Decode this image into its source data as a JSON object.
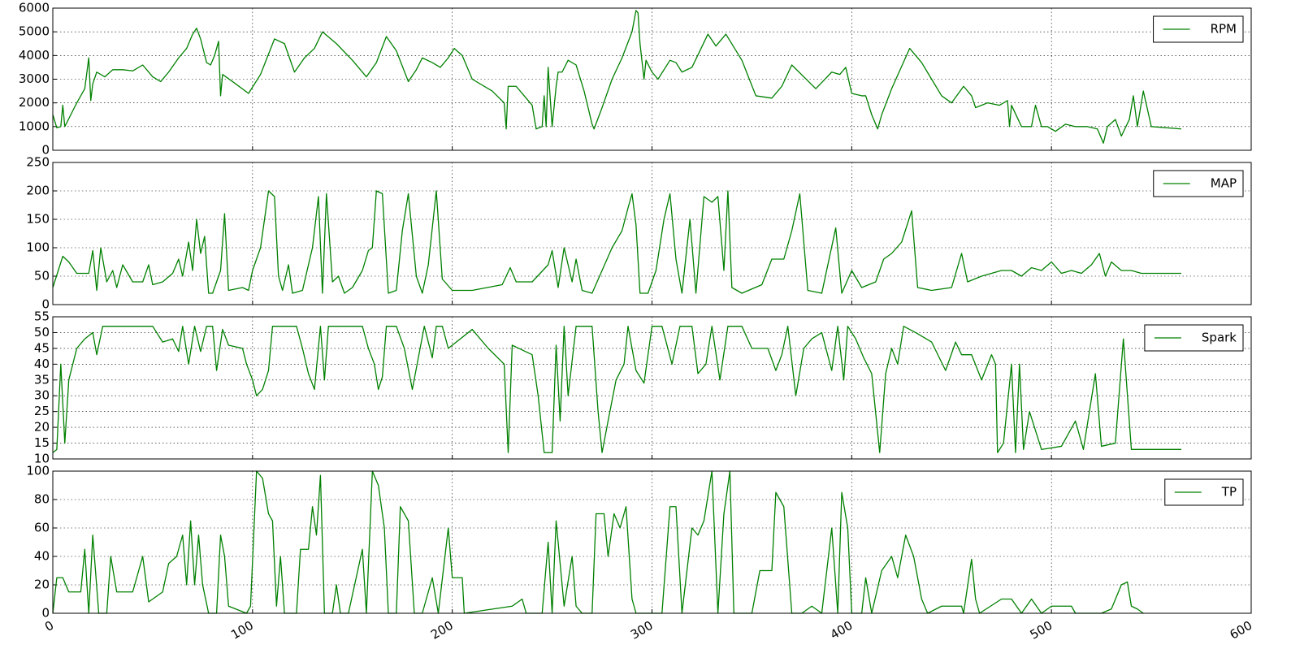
{
  "chart_data": [
    {
      "type": "line",
      "xlim": [
        0,
        600
      ],
      "xticks": [
        0,
        100,
        200,
        300,
        400,
        500,
        600
      ],
      "ylim": [
        0,
        6000
      ],
      "yticks": [
        0,
        1000,
        2000,
        3000,
        4000,
        5000,
        6000
      ],
      "grid": true,
      "legend": "upper right",
      "x": [
        0,
        2,
        4,
        5,
        6,
        9,
        12,
        16,
        18,
        19,
        20,
        22,
        26,
        30,
        35,
        40,
        45,
        50,
        54,
        58,
        63,
        67,
        70,
        72,
        74,
        77,
        79,
        81,
        83,
        84,
        85,
        90,
        98,
        104,
        111,
        116,
        121,
        126,
        131,
        135,
        142,
        150,
        157,
        162,
        167,
        172,
        178,
        182,
        185,
        190,
        194,
        198,
        201,
        205,
        210,
        220,
        226,
        227,
        228,
        232,
        236,
        240,
        242,
        245,
        246,
        247,
        248,
        250,
        252,
        253,
        255,
        258,
        262,
        266,
        270,
        271,
        275,
        280,
        285,
        290,
        292,
        293,
        294,
        296,
        297,
        300,
        303,
        309,
        312,
        315,
        320,
        328,
        332,
        337,
        345,
        352,
        360,
        365,
        370,
        376,
        382,
        390,
        394,
        397,
        400,
        405,
        407,
        410,
        413,
        415,
        420,
        429,
        435,
        440,
        445,
        450,
        456,
        460,
        462,
        468,
        474,
        478,
        479,
        480,
        485,
        490,
        492,
        495,
        498,
        502,
        507,
        512,
        518,
        523,
        526,
        528,
        532,
        535,
        539,
        541,
        543,
        546,
        550,
        565
      ],
      "series": [
        {
          "name": "RPM",
          "color": "#008000",
          "values": [
            1500,
            950,
            1000,
            1900,
            1000,
            1500,
            2000,
            2600,
            3900,
            2100,
            2800,
            3300,
            3100,
            3400,
            3400,
            3350,
            3600,
            3100,
            2900,
            3300,
            3900,
            4300,
            4900,
            5150,
            4700,
            3700,
            3600,
            4000,
            4600,
            2300,
            3200,
            2900,
            2400,
            3200,
            4700,
            4500,
            3300,
            3900,
            4300,
            5000,
            4500,
            3800,
            3100,
            3700,
            4800,
            4200,
            2900,
            3400,
            3900,
            3700,
            3500,
            3900,
            4300,
            4000,
            3000,
            2500,
            2000,
            900,
            2700,
            2700,
            2300,
            1900,
            900,
            1000,
            2300,
            1000,
            3500,
            1000,
            2700,
            3300,
            3300,
            3800,
            3600,
            2500,
            1100,
            900,
            1800,
            3000,
            3900,
            5000,
            5900,
            5800,
            4500,
            3000,
            3800,
            3300,
            3000,
            3800,
            3700,
            3300,
            3500,
            4900,
            4400,
            4900,
            3800,
            2300,
            2200,
            2700,
            3600,
            3100,
            2600,
            3300,
            3200,
            3500,
            2400,
            2300,
            2300,
            1500,
            900,
            1500,
            2600,
            4300,
            3700,
            3000,
            2300,
            2000,
            2700,
            2300,
            1800,
            2000,
            1900,
            2100,
            1000,
            1900,
            1000,
            1000,
            1900,
            1000,
            1000,
            800,
            1100,
            1000,
            1000,
            900,
            300,
            1000,
            1300,
            600,
            1300,
            2300,
            1000,
            2500,
            1000,
            900
          ]
        }
      ]
    },
    {
      "type": "line",
      "xlim": [
        0,
        600
      ],
      "xticks": [
        0,
        100,
        200,
        300,
        400,
        500,
        600
      ],
      "ylim": [
        0,
        250
      ],
      "yticks": [
        0,
        50,
        100,
        150,
        200,
        250
      ],
      "grid": true,
      "legend": "upper right",
      "x": [
        0,
        5,
        8,
        12,
        18,
        20,
        22,
        24,
        27,
        30,
        32,
        35,
        40,
        45,
        48,
        50,
        55,
        60,
        63,
        65,
        68,
        70,
        72,
        74,
        76,
        78,
        80,
        84,
        86,
        88,
        95,
        98,
        100,
        104,
        106,
        108,
        111,
        113,
        115,
        118,
        120,
        125,
        130,
        133,
        135,
        137,
        140,
        143,
        146,
        150,
        155,
        158,
        160,
        162,
        165,
        168,
        172,
        175,
        178,
        182,
        185,
        188,
        192,
        195,
        200,
        210,
        225,
        229,
        232,
        240,
        248,
        250,
        253,
        256,
        260,
        262,
        265,
        270,
        280,
        285,
        288,
        290,
        292,
        294,
        298,
        302,
        306,
        309,
        312,
        315,
        319,
        322,
        326,
        330,
        333,
        336,
        338,
        340,
        345,
        355,
        360,
        366,
        370,
        374,
        378,
        385,
        392,
        395,
        400,
        405,
        412,
        416,
        420,
        425,
        430,
        433,
        440,
        450,
        455,
        458,
        465,
        475,
        480,
        485,
        490,
        495,
        500,
        505,
        510,
        515,
        520,
        524,
        527,
        530,
        535,
        540,
        545,
        550,
        565
      ],
      "series": [
        {
          "name": "MAP",
          "color": "#008000",
          "values": [
            30,
            85,
            75,
            55,
            55,
            95,
            25,
            100,
            40,
            60,
            30,
            70,
            40,
            40,
            70,
            35,
            40,
            55,
            80,
            50,
            110,
            60,
            150,
            90,
            120,
            20,
            20,
            60,
            160,
            25,
            30,
            25,
            60,
            100,
            150,
            200,
            190,
            50,
            25,
            70,
            20,
            25,
            100,
            190,
            20,
            195,
            40,
            50,
            20,
            30,
            60,
            95,
            100,
            200,
            195,
            20,
            25,
            130,
            195,
            50,
            20,
            70,
            200,
            45,
            25,
            25,
            35,
            65,
            40,
            40,
            70,
            95,
            30,
            100,
            40,
            80,
            25,
            20,
            100,
            130,
            170,
            195,
            140,
            20,
            20,
            60,
            150,
            195,
            80,
            20,
            150,
            20,
            190,
            180,
            190,
            60,
            200,
            30,
            20,
            35,
            80,
            80,
            130,
            195,
            25,
            20,
            135,
            20,
            60,
            30,
            40,
            80,
            90,
            110,
            165,
            30,
            25,
            30,
            90,
            40,
            50,
            60,
            60,
            50,
            65,
            60,
            75,
            55,
            60,
            55,
            70,
            90,
            50,
            75,
            60,
            60,
            55,
            55,
            55
          ]
        }
      ]
    },
    {
      "type": "line",
      "xlim": [
        0,
        600
      ],
      "xticks": [
        0,
        100,
        200,
        300,
        400,
        500,
        600
      ],
      "ylim": [
        10,
        55
      ],
      "yticks": [
        10,
        15,
        20,
        25,
        30,
        35,
        40,
        45,
        50,
        55
      ],
      "grid": true,
      "legend": "upper right",
      "x": [
        0,
        2,
        4,
        6,
        8,
        12,
        16,
        20,
        22,
        25,
        40,
        50,
        55,
        60,
        63,
        65,
        68,
        71,
        74,
        77,
        80,
        82,
        85,
        88,
        95,
        97,
        100,
        102,
        105,
        108,
        110,
        122,
        125,
        128,
        131,
        134,
        136,
        138,
        155,
        158,
        161,
        163,
        165,
        167,
        172,
        176,
        180,
        183,
        186,
        190,
        192,
        195,
        198,
        210,
        218,
        226,
        228,
        230,
        240,
        243,
        246,
        250,
        252,
        254,
        256,
        258,
        262,
        270,
        273,
        275,
        278,
        282,
        286,
        288,
        292,
        296,
        300,
        305,
        310,
        314,
        320,
        323,
        327,
        330,
        334,
        338,
        345,
        350,
        358,
        362,
        365,
        368,
        372,
        376,
        380,
        385,
        390,
        393,
        396,
        398,
        402,
        406,
        410,
        414,
        417,
        420,
        423,
        426,
        432,
        440,
        447,
        452,
        455,
        460,
        465,
        470,
        472,
        473,
        476,
        480,
        482,
        484,
        486,
        489,
        495,
        505,
        512,
        516,
        522,
        525,
        532,
        536,
        540,
        545,
        565
      ],
      "series": [
        {
          "name": "Spark",
          "color": "#008000",
          "values": [
            12,
            13,
            40,
            15,
            35,
            45,
            48,
            50,
            43,
            52,
            52,
            52,
            47,
            48,
            44,
            52,
            40,
            52,
            44,
            52,
            52,
            38,
            51,
            46,
            45,
            40,
            35,
            30,
            32,
            38,
            52,
            52,
            45,
            37,
            32,
            52,
            35,
            52,
            52,
            45,
            40,
            32,
            36,
            52,
            52,
            45,
            32,
            42,
            52,
            42,
            52,
            52,
            45,
            51,
            45,
            40,
            12,
            46,
            43,
            30,
            12,
            12,
            46,
            22,
            52,
            30,
            52,
            52,
            25,
            12,
            22,
            35,
            40,
            52,
            38,
            34,
            52,
            52,
            40,
            52,
            52,
            37,
            40,
            52,
            35,
            52,
            52,
            45,
            45,
            38,
            43,
            52,
            30,
            45,
            48,
            50,
            38,
            52,
            35,
            52,
            48,
            42,
            37,
            12,
            37,
            45,
            40,
            52,
            50,
            47,
            38,
            47,
            43,
            43,
            35,
            43,
            40,
            12,
            15,
            40,
            12,
            40,
            13,
            25,
            13,
            14,
            22,
            13,
            37,
            14,
            15,
            48,
            13,
            13,
            13
          ]
        }
      ]
    },
    {
      "type": "line",
      "xlim": [
        0,
        600
      ],
      "xticks": [
        0,
        100,
        200,
        300,
        400,
        500,
        600
      ],
      "ylim": [
        0,
        100
      ],
      "yticks": [
        0,
        20,
        40,
        60,
        80,
        100
      ],
      "grid": true,
      "legend": "upper right",
      "x": [
        0,
        2,
        5,
        8,
        14,
        16,
        18,
        20,
        23,
        27,
        29,
        32,
        40,
        45,
        48,
        55,
        58,
        62,
        65,
        67,
        69,
        71,
        73,
        75,
        78,
        82,
        84,
        86,
        88,
        97,
        99,
        102,
        105,
        108,
        110,
        112,
        114,
        116,
        122,
        124,
        128,
        130,
        132,
        134,
        136,
        140,
        142,
        144,
        148,
        155,
        157,
        160,
        163,
        166,
        168,
        172,
        174,
        178,
        181,
        185,
        190,
        193,
        198,
        200,
        205,
        206,
        230,
        235,
        237,
        245,
        248,
        250,
        252,
        254,
        256,
        260,
        262,
        265,
        270,
        272,
        276,
        278,
        281,
        284,
        287,
        290,
        292,
        305,
        309,
        312,
        315,
        320,
        323,
        326,
        330,
        333,
        336,
        339,
        341,
        350,
        354,
        360,
        362,
        366,
        370,
        375,
        380,
        385,
        390,
        393,
        395,
        398,
        400,
        405,
        407,
        410,
        415,
        420,
        423,
        427,
        431,
        433,
        435,
        438,
        445,
        455,
        456,
        460,
        462,
        464,
        475,
        480,
        485,
        490,
        495,
        500,
        510,
        512,
        525,
        530,
        535,
        538,
        540,
        543,
        546
      ],
      "series": [
        {
          "name": "TP",
          "color": "#008000",
          "values": [
            0,
            25,
            25,
            15,
            15,
            45,
            0,
            55,
            0,
            0,
            40,
            15,
            15,
            40,
            8,
            15,
            35,
            40,
            55,
            20,
            65,
            20,
            55,
            20,
            0,
            0,
            55,
            40,
            5,
            0,
            5,
            100,
            95,
            70,
            65,
            5,
            40,
            0,
            0,
            45,
            45,
            75,
            55,
            97,
            0,
            0,
            20,
            0,
            0,
            45,
            0,
            100,
            90,
            60,
            0,
            0,
            75,
            65,
            0,
            0,
            25,
            0,
            60,
            25,
            25,
            0,
            5,
            10,
            0,
            0,
            50,
            0,
            65,
            35,
            5,
            40,
            5,
            0,
            0,
            70,
            70,
            40,
            70,
            60,
            75,
            10,
            0,
            0,
            75,
            75,
            0,
            60,
            55,
            65,
            100,
            0,
            70,
            100,
            0,
            0,
            30,
            30,
            85,
            75,
            0,
            0,
            5,
            0,
            60,
            0,
            85,
            60,
            0,
            0,
            25,
            0,
            30,
            40,
            25,
            55,
            40,
            25,
            10,
            0,
            5,
            5,
            0,
            38,
            10,
            0,
            10,
            10,
            0,
            10,
            0,
            5,
            5,
            0,
            0,
            3,
            20,
            22,
            5,
            3,
            0
          ]
        }
      ]
    }
  ]
}
